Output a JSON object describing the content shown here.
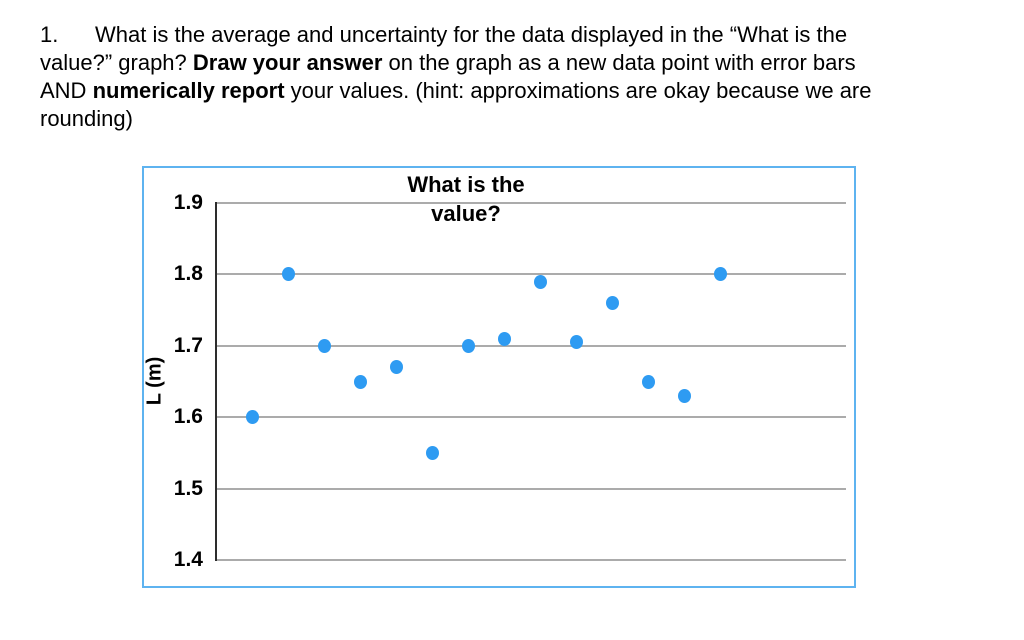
{
  "question": {
    "lines": [
      [
        {
          "text": "1.      What is the average and uncertainty for the data displayed in the “What is the",
          "bold": false
        }
      ],
      [
        {
          "text": "value?” graph? ",
          "bold": false
        },
        {
          "text": "Draw your answer",
          "bold": true
        },
        {
          "text": " on the graph as a new data point with error bars",
          "bold": false
        }
      ],
      [
        {
          "text": "AND ",
          "bold": false
        },
        {
          "text": "numerically report",
          "bold": true
        },
        {
          "text": " your values. (hint: approximations are okay because we are",
          "bold": false
        }
      ],
      [
        {
          "text": "rounding)",
          "bold": false
        }
      ]
    ]
  },
  "chart_data": {
    "type": "scatter",
    "title": "What is the value?",
    "title_lines": [
      "What is the",
      "value?"
    ],
    "xlabel": "",
    "ylabel": "L (m)",
    "ylim": [
      1.4,
      1.9
    ],
    "yticks": [
      1.9,
      1.8,
      1.7,
      1.6,
      1.5,
      1.4
    ],
    "xlim": [
      0,
      17.5
    ],
    "grid": "horizontal",
    "legend": "none",
    "marker_color": "#2e9bf2",
    "gridline_color": "#ababab",
    "axis_color": "#2d2d2d",
    "box_border_color": "#5eb3f0",
    "points": [
      {
        "x": 1,
        "y": 1.6
      },
      {
        "x": 2,
        "y": 1.8
      },
      {
        "x": 3,
        "y": 1.7
      },
      {
        "x": 4,
        "y": 1.65
      },
      {
        "x": 5,
        "y": 1.67
      },
      {
        "x": 6,
        "y": 1.55
      },
      {
        "x": 7,
        "y": 1.7
      },
      {
        "x": 8,
        "y": 1.71
      },
      {
        "x": 9,
        "y": 1.79
      },
      {
        "x": 10,
        "y": 1.705
      },
      {
        "x": 11,
        "y": 1.76
      },
      {
        "x": 12,
        "y": 1.65
      },
      {
        "x": 13,
        "y": 1.63
      },
      {
        "x": 14,
        "y": 1.8
      }
    ]
  }
}
